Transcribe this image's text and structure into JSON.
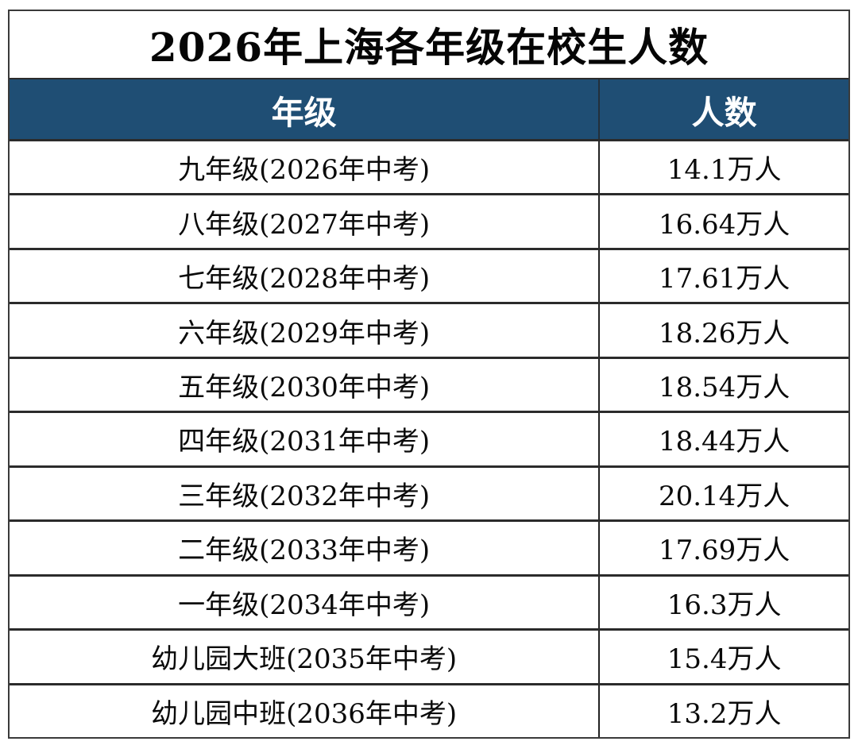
{
  "title": "2026年上海各年级在校生人数",
  "table": {
    "headers": [
      {
        "label": "年级"
      },
      {
        "label": "人数"
      }
    ],
    "rows": [
      {
        "grade": "九年级(2026年中考)",
        "count": "14.1万人"
      },
      {
        "grade": "八年级(2027年中考)",
        "count": "16.64万人"
      },
      {
        "grade": "七年级(2028年中考)",
        "count": "17.61万人"
      },
      {
        "grade": "六年级(2029年中考)",
        "count": "18.26万人"
      },
      {
        "grade": "五年级(2030年中考)",
        "count": "18.54万人"
      },
      {
        "grade": "四年级(2031年中考)",
        "count": "18.44万人"
      },
      {
        "grade": "三年级(2032年中考)",
        "count": "20.14万人"
      },
      {
        "grade": "二年级(2033年中考)",
        "count": "17.69万人"
      },
      {
        "grade": "一年级(2034年中考)",
        "count": "16.3万人"
      },
      {
        "grade": "幼儿园大班(2035年中考)",
        "count": "15.4万人"
      },
      {
        "grade": "幼儿园中班(2036年中考)",
        "count": "13.2万人"
      }
    ]
  },
  "colors": {
    "header_bg": "#1F4E74",
    "header_text": "#FFFFFF",
    "body_text": "#0A0A0A",
    "border": "#2B2B2B",
    "background": "#FFFFFF"
  },
  "chart_data": {
    "type": "table",
    "title": "2026年上海各年级在校生人数",
    "columns": [
      "年级",
      "人数"
    ],
    "rows": [
      [
        "九年级(2026年中考)",
        "14.1万人"
      ],
      [
        "八年级(2027年中考)",
        "16.64万人"
      ],
      [
        "七年级(2028年中考)",
        "17.61万人"
      ],
      [
        "六年级(2029年中考)",
        "18.26万人"
      ],
      [
        "五年级(2030年中考)",
        "18.54万人"
      ],
      [
        "四年级(2031年中考)",
        "18.44万人"
      ],
      [
        "三年级(2032年中考)",
        "20.14万人"
      ],
      [
        "二年级(2033年中考)",
        "17.69万人"
      ],
      [
        "一年级(2034年中考)",
        "16.3万人"
      ],
      [
        "幼儿园大班(2035年中考)",
        "15.4万人"
      ],
      [
        "幼儿园中班(2036年中考)",
        "13.2万人"
      ]
    ],
    "values_wan_ren": [
      14.1,
      16.64,
      17.61,
      18.26,
      18.54,
      18.44,
      20.14,
      17.69,
      16.3,
      15.4,
      13.2
    ],
    "unit": "万人"
  }
}
